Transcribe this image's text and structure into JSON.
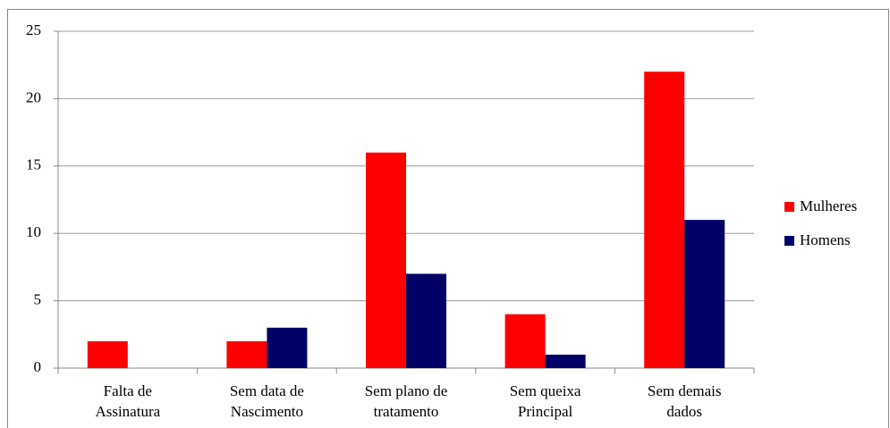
{
  "chart_data": {
    "type": "bar",
    "categories": [
      [
        "Falta de",
        "Assinatura"
      ],
      [
        "Sem data de",
        "Nascimento"
      ],
      [
        "Sem plano de",
        "tratamento"
      ],
      [
        "Sem queixa",
        "Principal"
      ],
      [
        "Sem demais",
        "dados"
      ]
    ],
    "series": [
      {
        "name": "Mulheres",
        "color": "#ff0000",
        "values": [
          2,
          2,
          16,
          4,
          22
        ]
      },
      {
        "name": "Homens",
        "color": "#000066",
        "values": [
          0,
          3,
          7,
          1,
          11
        ]
      }
    ],
    "ylim": [
      0,
      25
    ],
    "yticks": [
      0,
      5,
      10,
      15,
      20,
      25
    ],
    "grid": true,
    "legend": "right"
  }
}
